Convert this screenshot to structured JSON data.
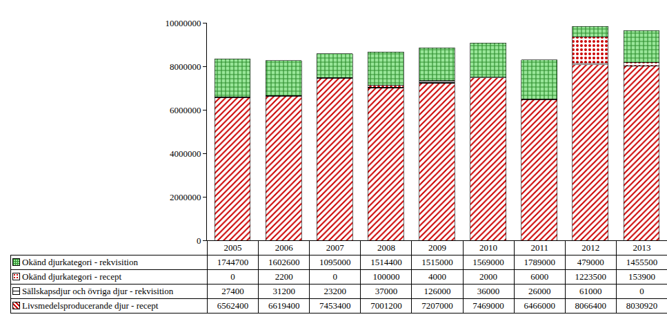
{
  "chart_data": {
    "type": "bar",
    "stacked": true,
    "grid": false,
    "tick_labels": "y",
    "categories": [
      "2005",
      "2006",
      "2007",
      "2008",
      "2009",
      "2010",
      "2011",
      "2012",
      "2013"
    ],
    "series": [
      {
        "name": "Livsmedelsproducerande djur - recept",
        "color": "#cc0000",
        "values": [
          6562400,
          6619400,
          7453400,
          7001200,
          7207000,
          7469000,
          6466000,
          8066400,
          8030920
        ]
      },
      {
        "name": "Sällskapsdjur och övriga djur - rekvisition",
        "color": "#000000",
        "values": [
          27400,
          31200,
          23200,
          37000,
          126000,
          36000,
          26000,
          61000,
          0
        ]
      },
      {
        "name": "Okänd djurkategori - recept",
        "color": "#cc0000",
        "values": [
          0,
          2200,
          0,
          100000,
          4000,
          2000,
          6000,
          1223500,
          153900
        ]
      },
      {
        "name": "Okänd djurkategori - rekvisition",
        "color": "#2f8f2f",
        "values": [
          1744700,
          1602600,
          1095000,
          1514400,
          1515000,
          1569000,
          1789000,
          479000,
          1455500
        ]
      }
    ],
    "ylim": [
      0,
      10000000
    ],
    "yticks": [
      0,
      2000000,
      4000000,
      6000000,
      8000000,
      10000000
    ]
  }
}
